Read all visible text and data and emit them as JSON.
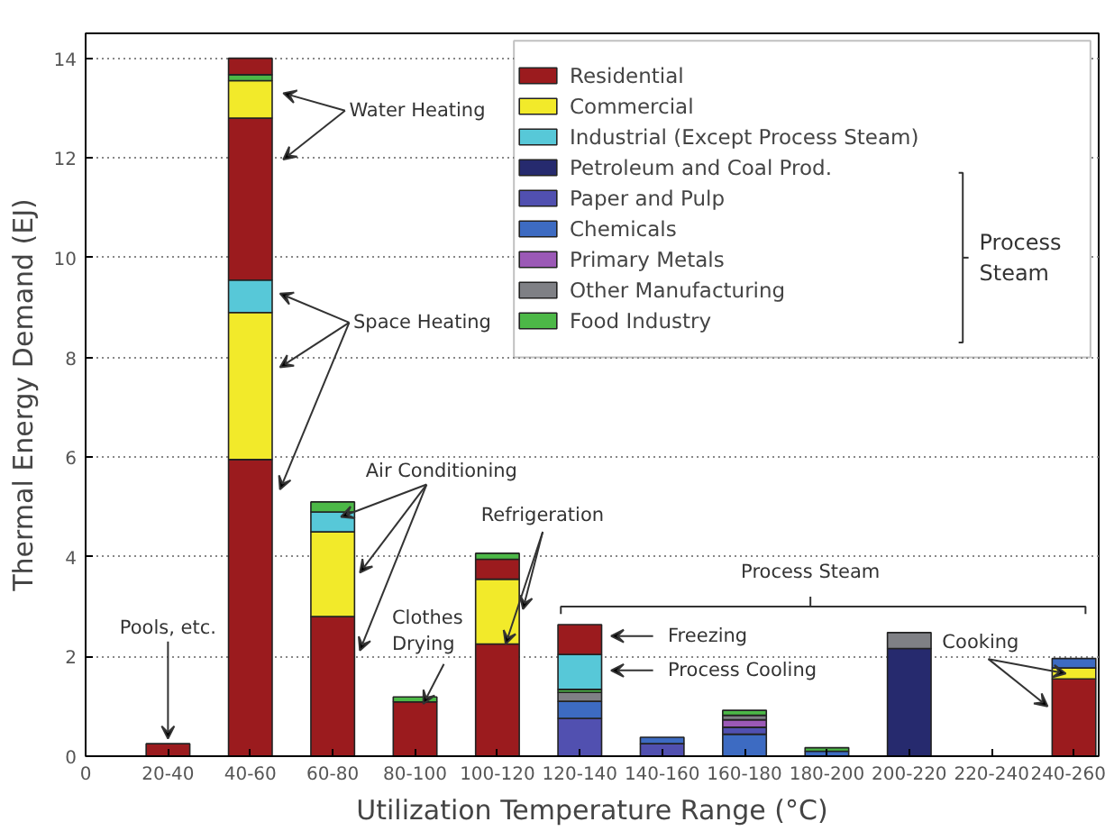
{
  "chart_data": {
    "type": "bar",
    "stacked": true,
    "xlabel": "Utilization Temperature Range (°C)",
    "ylabel": "Thermal Energy Demand (EJ)",
    "categories": [
      "0",
      "20-40",
      "40-60",
      "60-80",
      "80-100",
      "100-120",
      "120-140",
      "140-160",
      "160-180",
      "180-200",
      "200-220",
      "220-240",
      "240-260"
    ],
    "ylim": [
      0,
      14.5
    ],
    "yticks": [
      0,
      2,
      4,
      6,
      8,
      10,
      12,
      14
    ],
    "grid": "y",
    "legend": "top right",
    "series": [
      {
        "name": "Residential",
        "color": "#9b1b1e",
        "values": [
          null,
          0.25,
          5.95,
          2.8,
          1.09,
          2.25,
          null,
          null,
          null,
          null,
          null,
          null,
          1.55
        ]
      },
      {
        "name": "Commercial",
        "color": "#f2ea2a",
        "values": [
          null,
          null,
          2.95,
          1.7,
          null,
          1.3,
          null,
          null,
          null,
          null,
          null,
          null,
          0.22
        ]
      },
      {
        "name": "Industrial (Except Process Steam)",
        "color": "#57c8d8",
        "values": [
          null,
          null,
          0.65,
          0.4,
          null,
          null,
          null,
          null,
          null,
          null,
          null,
          null,
          null
        ]
      },
      {
        "name": "Petroleum and Coal Prod.",
        "color": "#262a6e",
        "values": [
          null,
          null,
          null,
          null,
          null,
          null,
          null,
          null,
          null,
          null,
          2.16,
          null,
          null
        ]
      },
      {
        "name": "Paper and Pulp",
        "color": "#5150b0",
        "values": [
          null,
          null,
          null,
          null,
          null,
          null,
          0.76,
          0.25,
          null,
          null,
          null,
          null,
          null
        ]
      },
      {
        "name": "Chemicals",
        "color": "#3d6bc2",
        "values": [
          null,
          null,
          null,
          null,
          null,
          null,
          0.34,
          0.13,
          0.44,
          0.1,
          null,
          null,
          0.19
        ]
      },
      {
        "color": "#5150b0",
        "values": [
          null,
          null,
          null,
          null,
          null,
          null,
          null,
          null,
          0.14,
          null,
          null,
          null,
          null
        ]
      },
      {
        "name": "Primary Metals",
        "color": "#9b59b6",
        "values": [
          null,
          null,
          null,
          null,
          null,
          null,
          null,
          null,
          0.15,
          null,
          null,
          null,
          null
        ]
      },
      {
        "name": "Other Manufacturing",
        "color": "#7f8085",
        "values": [
          null,
          null,
          null,
          null,
          null,
          null,
          0.18,
          null,
          0.09,
          null,
          0.32,
          null,
          null
        ]
      },
      {
        "color": "#9b1b1e",
        "values": [
          null,
          null,
          3.25,
          null,
          null,
          0.4,
          null,
          null,
          null,
          null,
          null,
          null,
          null
        ]
      },
      {
        "color": "#f2ea2a",
        "values": [
          null,
          null,
          0.75,
          null,
          null,
          null,
          null,
          null,
          null,
          null,
          null,
          null,
          null
        ]
      },
      {
        "name": "Food Industry",
        "color": "#4cb847",
        "values": [
          null,
          null,
          0.12,
          0.2,
          0.1,
          0.12,
          0.06,
          null,
          0.1,
          0.07,
          null,
          null,
          null
        ]
      },
      {
        "color": "#57c8d8",
        "values": [
          null,
          null,
          null,
          null,
          null,
          null,
          0.7,
          null,
          null,
          null,
          null,
          null,
          null
        ]
      },
      {
        "color": "#9b1b1e",
        "values": [
          null,
          null,
          0.33,
          null,
          null,
          null,
          0.6,
          null,
          null,
          null,
          null,
          null,
          null
        ]
      }
    ],
    "annotations": [
      "Water Heating",
      "Space Heating",
      {
        "text": "Air Conditioning",
        "x": "60-80",
        "y": 4.8
      },
      {
        "text": "Clothes Drying",
        "x": "80-100",
        "y": 1.05
      },
      {
        "text": "Refrigeration",
        "x": "100-120",
        "y": 2.25
      },
      {
        "text": "Pools, etc.",
        "x": "20-40",
        "y": 0.35
      },
      "Process Steam",
      "Freezing",
      "Process Cooling",
      {
        "text": "Cooking",
        "x": "240-260",
        "y": 1.66
      },
      "Process Steam"
    ]
  }
}
